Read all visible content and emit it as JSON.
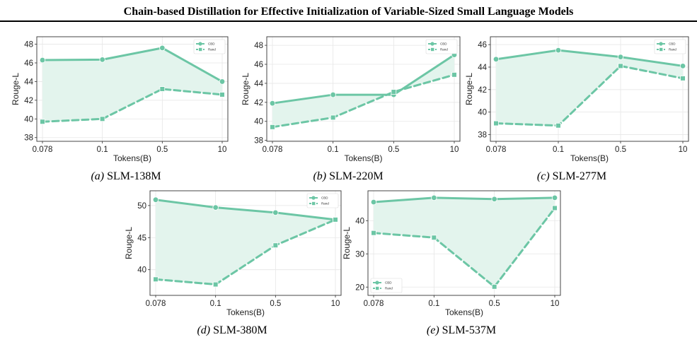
{
  "header": {
    "title": "Chain-based Distillation for Effective Initialization of Variable-Sized Small Language Models"
  },
  "style": {
    "cbd_color": "#6cc6a5",
    "fill_color": "#e3f4ed",
    "grid_color": "#e6e6e6"
  },
  "chart_data": [
    {
      "type": "line",
      "caption_tag": "(a)",
      "caption_text": "SLM-138M",
      "categories": [
        "0.078",
        "0.1",
        "0.5",
        "10"
      ],
      "xlabel": "Tokens(B)",
      "ylabel": "Rouge-L",
      "yticks": [
        38,
        40,
        42,
        44,
        46,
        48
      ],
      "ylim": [
        37.6,
        48.8
      ],
      "legend_position": "top-right",
      "series": [
        {
          "name": "CBD",
          "values": [
            46.3,
            46.35,
            47.6,
            44.0
          ],
          "dash": false
        },
        {
          "name": "Rand",
          "values": [
            39.7,
            40.0,
            43.2,
            42.6
          ],
          "dash": true
        }
      ]
    },
    {
      "type": "line",
      "caption_tag": "(b)",
      "caption_text": "SLM-220M",
      "categories": [
        "0.078",
        "0.1",
        "0.5",
        "10"
      ],
      "xlabel": "Tokens(B)",
      "ylabel": "Rouge-L",
      "yticks": [
        38,
        40,
        42,
        44,
        46,
        48
      ],
      "ylim": [
        37.9,
        48.9
      ],
      "legend_position": "top-right",
      "series": [
        {
          "name": "CBD",
          "values": [
            41.9,
            42.8,
            42.8,
            47.0
          ],
          "dash": false
        },
        {
          "name": "Rand",
          "values": [
            39.4,
            40.4,
            43.1,
            44.9
          ],
          "dash": true
        }
      ]
    },
    {
      "type": "line",
      "caption_tag": "(c)",
      "caption_text": "SLM-277M",
      "categories": [
        "0.078",
        "0.1",
        "0.5",
        "10"
      ],
      "xlabel": "Tokens(B)",
      "ylabel": "Rouge-L",
      "yticks": [
        38,
        40,
        42,
        44,
        46
      ],
      "ylim": [
        37.4,
        46.7
      ],
      "legend_position": "top-right",
      "series": [
        {
          "name": "CBD",
          "values": [
            44.7,
            45.5,
            44.9,
            44.1
          ],
          "dash": false
        },
        {
          "name": "Rand",
          "values": [
            39.0,
            38.8,
            44.1,
            43.0
          ],
          "dash": true
        }
      ]
    },
    {
      "type": "line",
      "caption_tag": "(d)",
      "caption_text": "SLM-380M",
      "categories": [
        "0.078",
        "0.1",
        "0.5",
        "10"
      ],
      "xlabel": "Tokens(B)",
      "ylabel": "Rouge-L",
      "yticks": [
        40,
        45,
        50
      ],
      "ylim": [
        36.0,
        52.3
      ],
      "legend_position": "top-right",
      "series": [
        {
          "name": "CBD",
          "values": [
            50.9,
            49.7,
            48.9,
            47.8
          ],
          "dash": false
        },
        {
          "name": "Rand",
          "values": [
            38.5,
            37.7,
            43.8,
            47.8
          ],
          "dash": true
        }
      ]
    },
    {
      "type": "line",
      "caption_tag": "(e)",
      "caption_text": "SLM-537M",
      "categories": [
        "0.078",
        "0.1",
        "0.5",
        "10"
      ],
      "xlabel": "Tokens(B)",
      "ylabel": "Rouge-L",
      "yticks": [
        20,
        30,
        40
      ],
      "ylim": [
        17.5,
        49.0
      ],
      "legend_position": "bottom-left",
      "series": [
        {
          "name": "CBD",
          "values": [
            45.6,
            46.9,
            46.5,
            46.9
          ],
          "dash": false
        },
        {
          "name": "Rand",
          "values": [
            36.3,
            34.9,
            20.1,
            43.8
          ],
          "dash": true
        }
      ]
    }
  ]
}
